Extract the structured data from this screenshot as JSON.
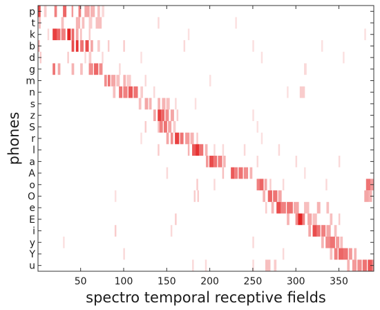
{
  "chart_data": {
    "type": "heatmap",
    "title": "",
    "xlabel": "spectro temporal receptive fields",
    "ylabel": "phones",
    "xlim": [
      0.5,
      390.5
    ],
    "x_ticks": [
      50,
      100,
      150,
      200,
      250,
      300,
      350
    ],
    "rows": [
      "p",
      "t",
      "k",
      "b",
      "d",
      "g",
      "m",
      "n",
      "s",
      "z",
      "S",
      "r",
      "l",
      "a",
      "A",
      "o",
      "O",
      "e",
      "E",
      "i",
      "y",
      "Y",
      "u"
    ],
    "colormap": [
      "#ffffff",
      "#e00000"
    ],
    "value_range": [
      0,
      1
    ],
    "grid": false,
    "cells": [
      {
        "row": "p",
        "segments": [
          [
            1,
            3,
            0.7
          ],
          [
            20,
            22,
            0.5
          ],
          [
            30,
            33,
            0.6
          ],
          [
            40,
            41,
            0.4
          ],
          [
            48,
            50,
            0.5
          ],
          [
            55,
            60,
            0.35
          ],
          [
            62,
            66,
            0.3
          ],
          [
            70,
            72,
            0.25
          ],
          [
            8,
            10,
            0.2
          ],
          [
            75,
            77,
            0.15
          ]
        ]
      },
      {
        "row": "t",
        "segments": [
          [
            2,
            3,
            0.3
          ],
          [
            28,
            30,
            0.25
          ],
          [
            45,
            49,
            0.3
          ],
          [
            52,
            54,
            0.25
          ],
          [
            60,
            63,
            0.2
          ],
          [
            68,
            74,
            0.25
          ],
          [
            140,
            141,
            0.15
          ],
          [
            230,
            231,
            0.12
          ]
        ]
      },
      {
        "row": "k",
        "segments": [
          [
            18,
            22,
            0.75
          ],
          [
            23,
            26,
            0.6
          ],
          [
            28,
            32,
            0.5
          ],
          [
            35,
            38,
            0.85
          ],
          [
            40,
            42,
            0.6
          ],
          [
            45,
            47,
            0.35
          ],
          [
            50,
            51,
            0.25
          ],
          [
            60,
            61,
            0.2
          ],
          [
            12,
            13,
            0.15
          ],
          [
            175,
            176,
            0.12
          ],
          [
            380,
            381,
            0.12
          ]
        ]
      },
      {
        "row": "b",
        "segments": [
          [
            1,
            2,
            0.3
          ],
          [
            40,
            42,
            0.7
          ],
          [
            45,
            47,
            0.8
          ],
          [
            50,
            53,
            0.55
          ],
          [
            56,
            59,
            0.7
          ],
          [
            62,
            64,
            0.35
          ],
          [
            70,
            72,
            0.2
          ],
          [
            82,
            83,
            0.2
          ],
          [
            100,
            101,
            0.2
          ],
          [
            170,
            171,
            0.15
          ],
          [
            250,
            251,
            0.12
          ],
          [
            330,
            331,
            0.12
          ]
        ]
      },
      {
        "row": "d",
        "segments": [
          [
            3,
            4,
            0.2
          ],
          [
            35,
            36,
            0.2
          ],
          [
            55,
            56,
            0.15
          ],
          [
            60,
            62,
            0.2
          ],
          [
            75,
            76,
            0.15
          ],
          [
            120,
            121,
            0.12
          ],
          [
            260,
            261,
            0.12
          ],
          [
            355,
            356,
            0.12
          ]
        ]
      },
      {
        "row": "g",
        "segments": [
          [
            18,
            20,
            0.55
          ],
          [
            24,
            26,
            0.35
          ],
          [
            40,
            42,
            0.3
          ],
          [
            50,
            52,
            0.25
          ],
          [
            60,
            64,
            0.45
          ],
          [
            66,
            70,
            0.6
          ],
          [
            72,
            75,
            0.45
          ],
          [
            310,
            312,
            0.15
          ],
          [
            95,
            96,
            0.15
          ]
        ]
      },
      {
        "row": "m",
        "segments": [
          [
            78,
            80,
            0.45
          ],
          [
            82,
            84,
            0.55
          ],
          [
            86,
            90,
            0.35
          ],
          [
            92,
            95,
            0.25
          ],
          [
            100,
            102,
            0.3
          ],
          [
            104,
            108,
            0.2
          ],
          [
            125,
            126,
            0.15
          ],
          [
            200,
            201,
            0.12
          ]
        ]
      },
      {
        "row": "n",
        "segments": [
          [
            88,
            90,
            0.25
          ],
          [
            95,
            98,
            0.55
          ],
          [
            100,
            104,
            0.5
          ],
          [
            106,
            110,
            0.65
          ],
          [
            112,
            116,
            0.55
          ],
          [
            120,
            122,
            0.2
          ],
          [
            135,
            136,
            0.15
          ],
          [
            305,
            310,
            0.2
          ],
          [
            290,
            291,
            0.12
          ]
        ]
      },
      {
        "row": "s",
        "segments": [
          [
            118,
            120,
            0.25
          ],
          [
            125,
            128,
            0.35
          ],
          [
            130,
            132,
            0.3
          ],
          [
            140,
            142,
            0.3
          ],
          [
            145,
            148,
            0.3
          ],
          [
            150,
            153,
            0.25
          ],
          [
            160,
            161,
            0.15
          ],
          [
            183,
            184,
            0.12
          ]
        ]
      },
      {
        "row": "z",
        "segments": [
          [
            135,
            137,
            0.35
          ],
          [
            140,
            143,
            0.75
          ],
          [
            144,
            147,
            0.6
          ],
          [
            149,
            152,
            0.45
          ],
          [
            155,
            158,
            0.35
          ],
          [
            162,
            163,
            0.2
          ],
          [
            250,
            251,
            0.12
          ]
        ]
      },
      {
        "row": "S",
        "segments": [
          [
            125,
            126,
            0.2
          ],
          [
            140,
            141,
            0.25
          ],
          [
            142,
            145,
            0.5
          ],
          [
            147,
            150,
            0.55
          ],
          [
            152,
            155,
            0.35
          ],
          [
            158,
            160,
            0.2
          ],
          [
            255,
            256,
            0.12
          ]
        ]
      },
      {
        "row": "r",
        "segments": [
          [
            150,
            152,
            0.35
          ],
          [
            155,
            157,
            0.45
          ],
          [
            160,
            164,
            0.75
          ],
          [
            166,
            169,
            0.55
          ],
          [
            172,
            176,
            0.4
          ],
          [
            178,
            181,
            0.3
          ],
          [
            185,
            186,
            0.2
          ],
          [
            120,
            121,
            0.12
          ],
          [
            260,
            261,
            0.12
          ]
        ]
      },
      {
        "row": "l",
        "segments": [
          [
            140,
            141,
            0.2
          ],
          [
            175,
            176,
            0.3
          ],
          [
            180,
            183,
            0.65
          ],
          [
            184,
            187,
            0.8
          ],
          [
            188,
            192,
            0.55
          ],
          [
            195,
            197,
            0.3
          ],
          [
            205,
            206,
            0.15
          ],
          [
            215,
            216,
            0.15
          ],
          [
            240,
            241,
            0.15
          ],
          [
            280,
            281,
            0.15
          ]
        ]
      },
      {
        "row": "a",
        "segments": [
          [
            196,
            198,
            0.4
          ],
          [
            200,
            204,
            0.7
          ],
          [
            205,
            208,
            0.55
          ],
          [
            210,
            214,
            0.5
          ],
          [
            216,
            218,
            0.3
          ],
          [
            255,
            256,
            0.15
          ],
          [
            300,
            301,
            0.15
          ],
          [
            350,
            351,
            0.15
          ]
        ]
      },
      {
        "row": "A",
        "segments": [
          [
            150,
            151,
            0.15
          ],
          [
            215,
            216,
            0.25
          ],
          [
            225,
            228,
            0.65
          ],
          [
            229,
            232,
            0.5
          ],
          [
            234,
            238,
            0.55
          ],
          [
            240,
            244,
            0.45
          ],
          [
            247,
            249,
            0.3
          ],
          [
            310,
            311,
            0.12
          ]
        ]
      },
      {
        "row": "o",
        "segments": [
          [
            185,
            186,
            0.2
          ],
          [
            205,
            206,
            0.15
          ],
          [
            255,
            257,
            0.5
          ],
          [
            258,
            262,
            0.6
          ],
          [
            264,
            266,
            0.35
          ],
          [
            270,
            271,
            0.2
          ],
          [
            285,
            286,
            0.15
          ],
          [
            335,
            336,
            0.15
          ],
          [
            382,
            386,
            0.55
          ],
          [
            387,
            390,
            0.4
          ]
        ]
      },
      {
        "row": "O",
        "segments": [
          [
            90,
            91,
            0.12
          ],
          [
            182,
            183,
            0.2
          ],
          [
            186,
            187,
            0.2
          ],
          [
            262,
            264,
            0.3
          ],
          [
            268,
            272,
            0.6
          ],
          [
            274,
            278,
            0.55
          ],
          [
            280,
            283,
            0.35
          ],
          [
            380,
            384,
            0.35
          ],
          [
            385,
            388,
            0.3
          ]
        ]
      },
      {
        "row": "e",
        "segments": [
          [
            265,
            266,
            0.2
          ],
          [
            272,
            274,
            0.3
          ],
          [
            278,
            282,
            0.7
          ],
          [
            283,
            288,
            0.5
          ],
          [
            290,
            296,
            0.55
          ],
          [
            298,
            303,
            0.35
          ],
          [
            310,
            315,
            0.25
          ],
          [
            325,
            328,
            0.3
          ],
          [
            336,
            338,
            0.25
          ]
        ]
      },
      {
        "row": "E",
        "segments": [
          [
            160,
            161,
            0.2
          ],
          [
            290,
            292,
            0.3
          ],
          [
            300,
            302,
            0.45
          ],
          [
            303,
            307,
            0.85
          ],
          [
            308,
            310,
            0.5
          ],
          [
            314,
            318,
            0.35
          ],
          [
            320,
            324,
            0.25
          ],
          [
            340,
            342,
            0.25
          ],
          [
            350,
            351,
            0.2
          ]
        ]
      },
      {
        "row": "i",
        "segments": [
          [
            90,
            91,
            0.2
          ],
          [
            155,
            156,
            0.15
          ],
          [
            315,
            317,
            0.35
          ],
          [
            320,
            324,
            0.7
          ],
          [
            325,
            328,
            0.55
          ],
          [
            330,
            334,
            0.5
          ],
          [
            336,
            340,
            0.35
          ],
          [
            345,
            347,
            0.25
          ]
        ]
      },
      {
        "row": "y",
        "segments": [
          [
            30,
            31,
            0.12
          ],
          [
            250,
            251,
            0.15
          ],
          [
            330,
            332,
            0.3
          ],
          [
            335,
            339,
            0.45
          ],
          [
            340,
            345,
            0.55
          ],
          [
            347,
            350,
            0.4
          ],
          [
            352,
            354,
            0.25
          ]
        ]
      },
      {
        "row": "Y",
        "segments": [
          [
            100,
            101,
            0.15
          ],
          [
            285,
            286,
            0.15
          ],
          [
            340,
            342,
            0.25
          ],
          [
            345,
            348,
            0.5
          ],
          [
            350,
            355,
            0.6
          ],
          [
            356,
            360,
            0.55
          ],
          [
            362,
            365,
            0.4
          ],
          [
            368,
            370,
            0.3
          ]
        ]
      },
      {
        "row": "u",
        "segments": [
          [
            180,
            181,
            0.15
          ],
          [
            195,
            196,
            0.15
          ],
          [
            250,
            251,
            0.15
          ],
          [
            265,
            270,
            0.25
          ],
          [
            275,
            277,
            0.2
          ],
          [
            360,
            362,
            0.3
          ],
          [
            366,
            370,
            0.4
          ],
          [
            372,
            376,
            0.45
          ],
          [
            378,
            382,
            0.55
          ],
          [
            384,
            388,
            0.65
          ],
          [
            389,
            390,
            0.45
          ]
        ]
      }
    ]
  }
}
